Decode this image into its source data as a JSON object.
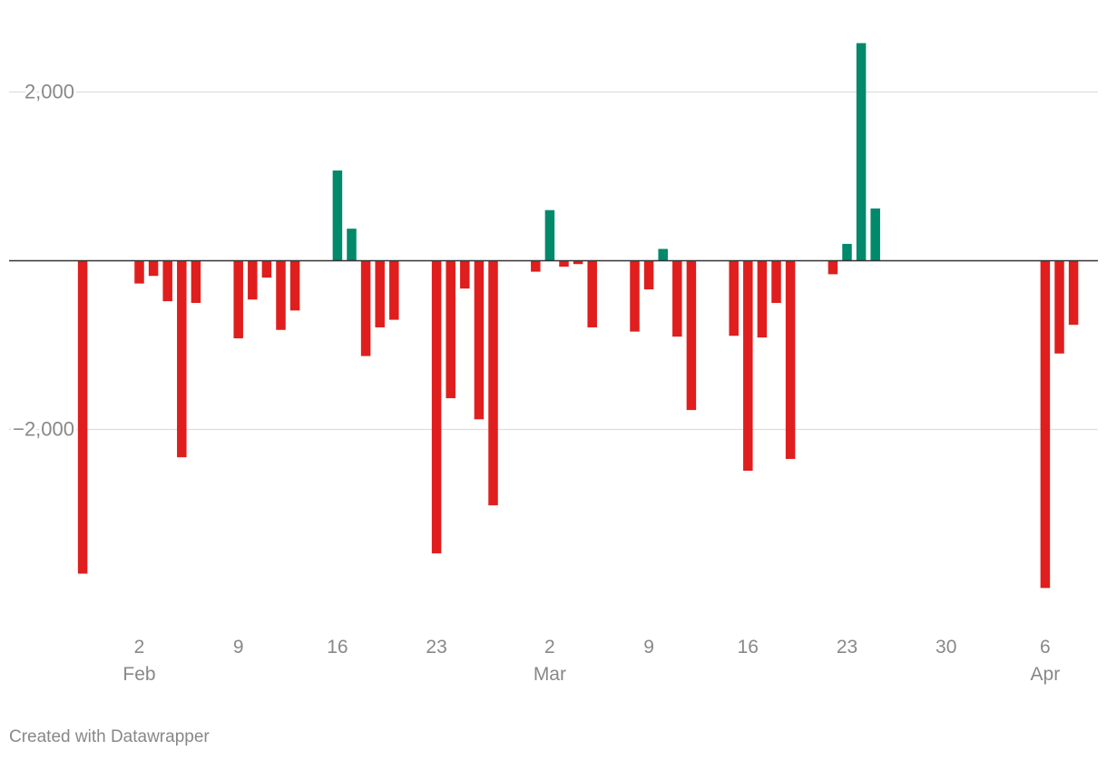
{
  "chart_data": {
    "type": "bar",
    "x_type": "date",
    "y_ticks": [
      2000,
      -2000
    ],
    "y_tick_labels": [
      "2,000",
      "−2,000"
    ],
    "ylim": [
      -4300,
      2580
    ],
    "grid": true,
    "colors": {
      "positive": "#00896a",
      "negative": "#e01e1e",
      "baseline": "#333333",
      "grid": "#dddddd"
    },
    "x_ticks": [
      {
        "date": "2020-02-02",
        "label": "2",
        "sublabel": "Feb"
      },
      {
        "date": "2020-02-09",
        "label": "9",
        "sublabel": ""
      },
      {
        "date": "2020-02-16",
        "label": "16",
        "sublabel": ""
      },
      {
        "date": "2020-02-23",
        "label": "23",
        "sublabel": ""
      },
      {
        "date": "2020-03-02",
        "label": "2",
        "sublabel": "Mar"
      },
      {
        "date": "2020-03-09",
        "label": "9",
        "sublabel": ""
      },
      {
        "date": "2020-03-16",
        "label": "16",
        "sublabel": ""
      },
      {
        "date": "2020-03-23",
        "label": "23",
        "sublabel": ""
      },
      {
        "date": "2020-03-30",
        "label": "30",
        "sublabel": ""
      },
      {
        "date": "2020-04-06",
        "label": "6",
        "sublabel": "Apr"
      }
    ],
    "points": [
      {
        "date": "2020-01-29",
        "value": -3710
      },
      {
        "date": "2020-01-30",
        "value": 0
      },
      {
        "date": "2020-01-31",
        "value": 0
      },
      {
        "date": "2020-02-01",
        "value": 0
      },
      {
        "date": "2020-02-02",
        "value": -270
      },
      {
        "date": "2020-02-03",
        "value": -180
      },
      {
        "date": "2020-02-04",
        "value": -480
      },
      {
        "date": "2020-02-05",
        "value": -2330
      },
      {
        "date": "2020-02-06",
        "value": -500
      },
      {
        "date": "2020-02-07",
        "value": 0
      },
      {
        "date": "2020-02-08",
        "value": 0
      },
      {
        "date": "2020-02-09",
        "value": -920
      },
      {
        "date": "2020-02-10",
        "value": -460
      },
      {
        "date": "2020-02-11",
        "value": -200
      },
      {
        "date": "2020-02-12",
        "value": -820
      },
      {
        "date": "2020-02-13",
        "value": -590
      },
      {
        "date": "2020-02-14",
        "value": 0
      },
      {
        "date": "2020-02-15",
        "value": 0
      },
      {
        "date": "2020-02-16",
        "value": 1070
      },
      {
        "date": "2020-02-17",
        "value": 380
      },
      {
        "date": "2020-02-18",
        "value": -1130
      },
      {
        "date": "2020-02-19",
        "value": -790
      },
      {
        "date": "2020-02-20",
        "value": -700
      },
      {
        "date": "2020-02-21",
        "value": 0
      },
      {
        "date": "2020-02-22",
        "value": 0
      },
      {
        "date": "2020-02-23",
        "value": -3470
      },
      {
        "date": "2020-02-24",
        "value": -1630
      },
      {
        "date": "2020-02-25",
        "value": -330
      },
      {
        "date": "2020-02-26",
        "value": -1880
      },
      {
        "date": "2020-02-27",
        "value": -2900
      },
      {
        "date": "2020-02-28",
        "value": 0
      },
      {
        "date": "2020-02-29",
        "value": 0
      },
      {
        "date": "2020-03-01",
        "value": -130
      },
      {
        "date": "2020-03-02",
        "value": 600
      },
      {
        "date": "2020-03-03",
        "value": -70
      },
      {
        "date": "2020-03-04",
        "value": -40
      },
      {
        "date": "2020-03-05",
        "value": -790
      },
      {
        "date": "2020-03-06",
        "value": 0
      },
      {
        "date": "2020-03-07",
        "value": 0
      },
      {
        "date": "2020-03-08",
        "value": -840
      },
      {
        "date": "2020-03-09",
        "value": -340
      },
      {
        "date": "2020-03-10",
        "value": 140
      },
      {
        "date": "2020-03-11",
        "value": -900
      },
      {
        "date": "2020-03-12",
        "value": -1770
      },
      {
        "date": "2020-03-13",
        "value": 0
      },
      {
        "date": "2020-03-14",
        "value": 0
      },
      {
        "date": "2020-03-15",
        "value": -890
      },
      {
        "date": "2020-03-16",
        "value": -2490
      },
      {
        "date": "2020-03-17",
        "value": -910
      },
      {
        "date": "2020-03-18",
        "value": -500
      },
      {
        "date": "2020-03-19",
        "value": -2350
      },
      {
        "date": "2020-03-20",
        "value": 0
      },
      {
        "date": "2020-03-21",
        "value": 0
      },
      {
        "date": "2020-03-22",
        "value": -160
      },
      {
        "date": "2020-03-23",
        "value": 200
      },
      {
        "date": "2020-03-24",
        "value": 2580
      },
      {
        "date": "2020-03-25",
        "value": 620
      },
      {
        "date": "2020-03-26",
        "value": 0
      },
      {
        "date": "2020-03-27",
        "value": 0
      },
      {
        "date": "2020-03-28",
        "value": 0
      },
      {
        "date": "2020-03-29",
        "value": 0
      },
      {
        "date": "2020-03-30",
        "value": 0
      },
      {
        "date": "2020-03-31",
        "value": 0
      },
      {
        "date": "2020-04-01",
        "value": 0
      },
      {
        "date": "2020-04-02",
        "value": 0
      },
      {
        "date": "2020-04-03",
        "value": 0
      },
      {
        "date": "2020-04-04",
        "value": 0
      },
      {
        "date": "2020-04-05",
        "value": 0
      },
      {
        "date": "2020-04-06",
        "value": -3880
      },
      {
        "date": "2020-04-07",
        "value": -1100
      },
      {
        "date": "2020-04-08",
        "value": -760
      }
    ]
  },
  "footer": {
    "credit": "Created with Datawrapper"
  }
}
